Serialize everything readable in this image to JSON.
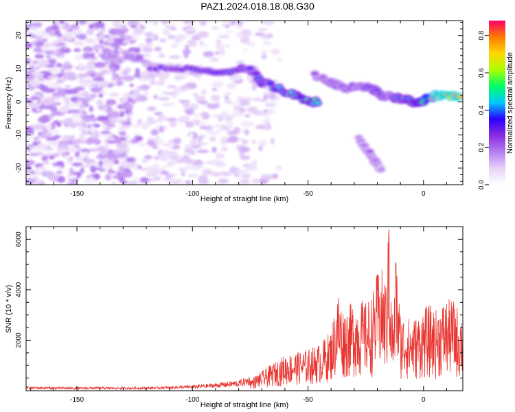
{
  "figure_title": "PAZ1.2024.018.18.08.G30",
  "chart_data": [
    {
      "type": "heatmap",
      "xlabel": "Height of straight line (km)",
      "ylabel": "Frequency (Hz)",
      "xlim": [
        -172,
        17
      ],
      "ylim": [
        -25,
        24.5
      ],
      "xticks": [
        -150,
        -100,
        -50,
        0
      ],
      "yticks": [
        20,
        10,
        0,
        -10,
        -20
      ],
      "colorbar": {
        "label": "Normalized spectral amplitude",
        "range": [
          0,
          0.88
        ],
        "ticks": [
          0.0,
          0.2,
          0.4,
          0.6,
          0.8
        ],
        "colormap": [
          "#ffffff",
          "#e6d2f8",
          "#b47ff0",
          "#8a2be2",
          "#2b00ff",
          "#00c8ff",
          "#00ff66",
          "#aaff00",
          "#ffd700",
          "#ff7a00",
          "#ff0066"
        ]
      },
      "description_ridges": [
        {
          "x": [
            -118,
            -100,
            -85,
            -75,
            -70,
            -60,
            -52,
            -45
          ],
          "freq": [
            10,
            9.5,
            9.5,
            10,
            6,
            3,
            1,
            -0.5
          ],
          "amplitude": [
            0.3,
            0.35,
            0.4,
            0.35,
            0.4,
            0.45,
            0.5,
            0.5
          ]
        },
        {
          "x": [
            -47,
            -40,
            -35,
            -28,
            -22,
            -18,
            -13
          ],
          "freq": [
            8,
            6,
            4,
            5,
            4,
            2,
            1.5
          ],
          "amplitude": [
            0.25,
            0.3,
            0.3,
            0.3,
            0.35,
            0.35,
            0.3
          ]
        },
        {
          "x": [
            -13,
            -8,
            -3,
            0,
            5,
            10,
            17
          ],
          "freq": [
            1,
            1,
            -0.5,
            0.5,
            2,
            2,
            1.5
          ],
          "amplitude": [
            0.4,
            0.45,
            0.5,
            0.55,
            0.8,
            0.85,
            0.85
          ]
        },
        {
          "x": [
            -28,
            -24,
            -21,
            -18
          ],
          "freq": [
            -11,
            -15,
            -18,
            -21
          ],
          "amplitude": [
            0.2,
            0.25,
            0.25,
            0.2
          ]
        }
      ]
    },
    {
      "type": "line",
      "xlabel": "Height of straight line (km)",
      "ylabel": "SNR (10 * v/v)",
      "xlim": [
        -172,
        17
      ],
      "ylim": [
        0,
        6500
      ],
      "xticks": [
        -150,
        -100,
        -50,
        0
      ],
      "yticks": [
        2000,
        4000,
        6000
      ],
      "series": [
        {
          "color": "#e8332e",
          "x": [
            -172,
            -160,
            -150,
            -140,
            -130,
            -120,
            -110,
            -100,
            -90,
            -80,
            -75,
            -70,
            -65,
            -60,
            -55,
            -50,
            -45,
            -40,
            -37,
            -35,
            -32,
            -30,
            -27,
            -25,
            -22,
            -20,
            -18,
            -16,
            -15,
            -14,
            -13,
            -12,
            -10,
            -8,
            -5,
            -2,
            0,
            3,
            5,
            8,
            10,
            13,
            15,
            17
          ],
          "envelope": [
            120,
            110,
            100,
            110,
            100,
            110,
            130,
            160,
            220,
            300,
            420,
            700,
            1000,
            1300,
            1400,
            1500,
            1700,
            2200,
            3700,
            3000,
            3100,
            3300,
            3300,
            3200,
            3500,
            4300,
            4400,
            4000,
            6400,
            3400,
            2600,
            5150,
            2800,
            2700,
            2600,
            2750,
            3000,
            3100,
            2900,
            3200,
            3300,
            3300,
            3000,
            2800
          ]
        }
      ]
    }
  ]
}
